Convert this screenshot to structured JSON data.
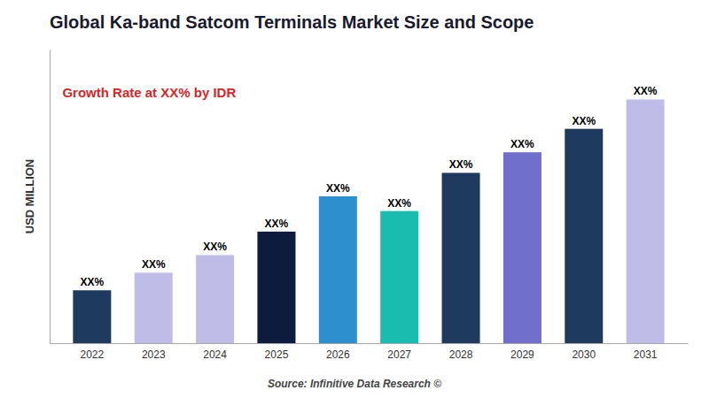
{
  "chart_data": {
    "type": "bar",
    "title": "Global Ka-band Satcom Terminals Market Size and Scope",
    "ylabel": "USD MILLION",
    "source": "Source: Infinitive Data Research ©",
    "annotations": [
      "Growth Rate at XX% by IDR"
    ],
    "categories": [
      "2022",
      "2023",
      "2024",
      "2025",
      "2026",
      "2027",
      "2028",
      "2029",
      "2030",
      "2031"
    ],
    "values": [
      18,
      24,
      30,
      38,
      50,
      45,
      58,
      65,
      73,
      83
    ],
    "value_labels": [
      "XX%",
      "XX%",
      "XX%",
      "XX%",
      "XX%",
      "XX%",
      "XX%",
      "XX%",
      "XX%",
      "XX%"
    ],
    "data_labels": true,
    "colors": [
      "#1e3a5f",
      "#c0bce8",
      "#c0bce8",
      "#0d1b3e",
      "#2e8fce",
      "#1abcb0",
      "#1e3a5f",
      "#7070cc",
      "#1e3a5f",
      "#c0bce8"
    ],
    "ylim": [
      0,
      100
    ],
    "grid": false,
    "tick_labels": "x"
  }
}
